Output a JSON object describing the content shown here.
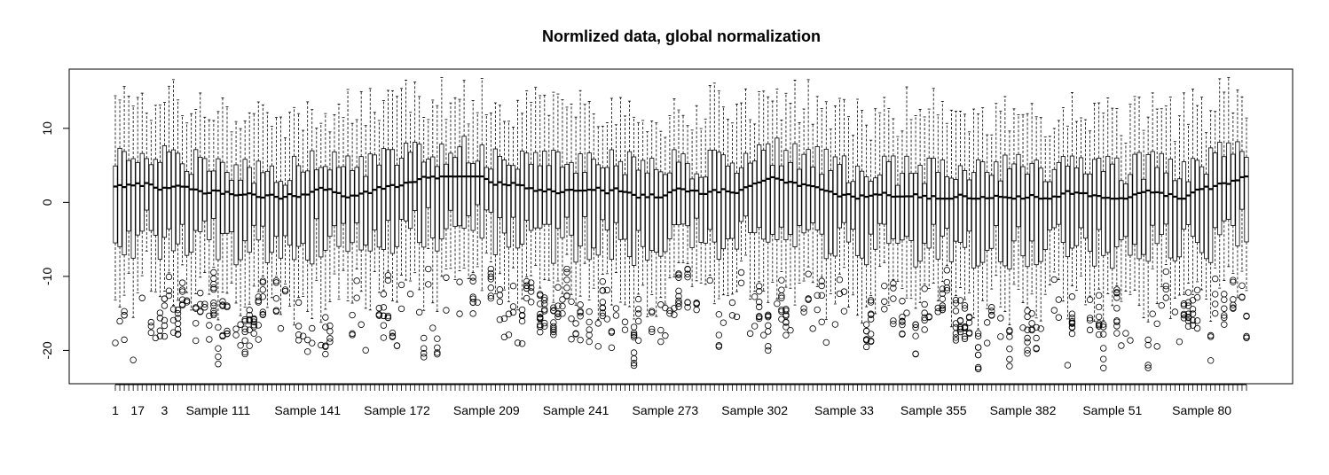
{
  "chart_data": {
    "type": "boxplot",
    "title": "Normlized data, global normalization",
    "xlabel": "",
    "ylabel": "",
    "ylim": [
      -24.5,
      18
    ],
    "yticks": [
      -20,
      -10,
      0,
      10
    ],
    "n_boxes": 254,
    "x_tick_labels": [
      "1",
      "17",
      "3",
      "Sample 111",
      "Sample 141",
      "Sample 172",
      "Sample 209",
      "Sample 241",
      "Sample 273",
      "Sample 302",
      "Sample 33",
      "Sample 355",
      "Sample 382",
      "Sample 51",
      "Sample 80"
    ],
    "x_tick_label_positions": [
      1,
      6,
      12,
      24,
      44,
      64,
      84,
      104,
      124,
      144,
      164,
      184,
      204,
      224,
      244
    ],
    "typical_box": {
      "median": 2,
      "q1": -4,
      "q3": 5,
      "whisker_low": -13,
      "whisker_high": 12
    },
    "outlier_range": [
      -22.5,
      -9
    ],
    "grid": false,
    "legend": "none"
  }
}
